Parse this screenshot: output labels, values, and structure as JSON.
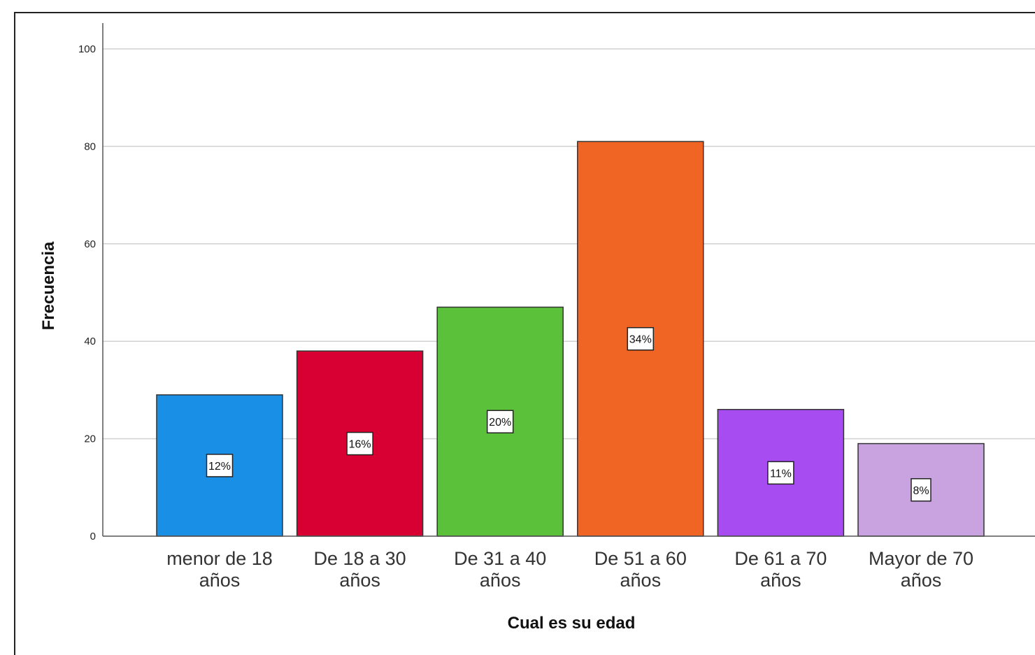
{
  "chart_data": {
    "type": "bar",
    "xlabel": "Cual es su edad",
    "ylabel": "Frecuencia",
    "ylim": [
      0,
      100
    ],
    "yticks": [
      0,
      20,
      40,
      60,
      80,
      100
    ],
    "grid": true,
    "categories": [
      [
        "menor de 18",
        "años"
      ],
      [
        "De 18 a 30",
        "años"
      ],
      [
        "De 31 a 40",
        "años"
      ],
      [
        "De 51 a 60",
        "años"
      ],
      [
        "De 61 a 70",
        "años"
      ],
      [
        "Mayor de 70",
        "años"
      ]
    ],
    "values": [
      29,
      38,
      47,
      81,
      26,
      19
    ],
    "data_labels": [
      "12%",
      "16%",
      "20%",
      "34%",
      "11%",
      "8%"
    ],
    "colors": [
      "#1a8fe6",
      "#d80032",
      "#5cc13a",
      "#f06424",
      "#a74cf0",
      "#c9a3e0"
    ]
  }
}
